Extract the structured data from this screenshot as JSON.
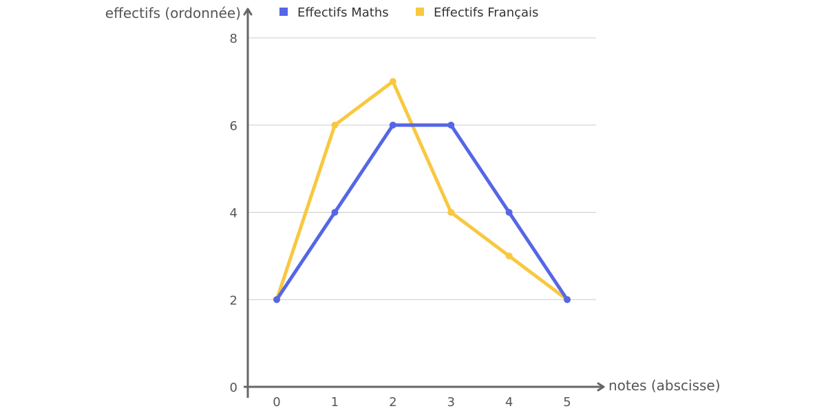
{
  "chart_data": {
    "type": "line",
    "xlabel": "notes (abscisse)",
    "ylabel": "effectifs (ordonnée)",
    "x": [
      0,
      1,
      2,
      3,
      4,
      5
    ],
    "x_tick_labels": [
      "0",
      "1",
      "2",
      "3",
      "4",
      "5"
    ],
    "y_tick_labels": [
      "0",
      "2",
      "4",
      "6",
      "8"
    ],
    "ylim": [
      0,
      8
    ],
    "yticks": [
      0,
      2,
      4,
      6,
      8
    ],
    "grid": true,
    "legend_position": "top",
    "series": [
      {
        "name": "Effectifs Maths",
        "color": "#5566e6",
        "values": [
          2,
          4,
          6,
          6,
          4,
          2
        ]
      },
      {
        "name": "Effectifs Français",
        "color": "#f8c840",
        "values": [
          2,
          6,
          7,
          4,
          3,
          2
        ]
      }
    ]
  }
}
